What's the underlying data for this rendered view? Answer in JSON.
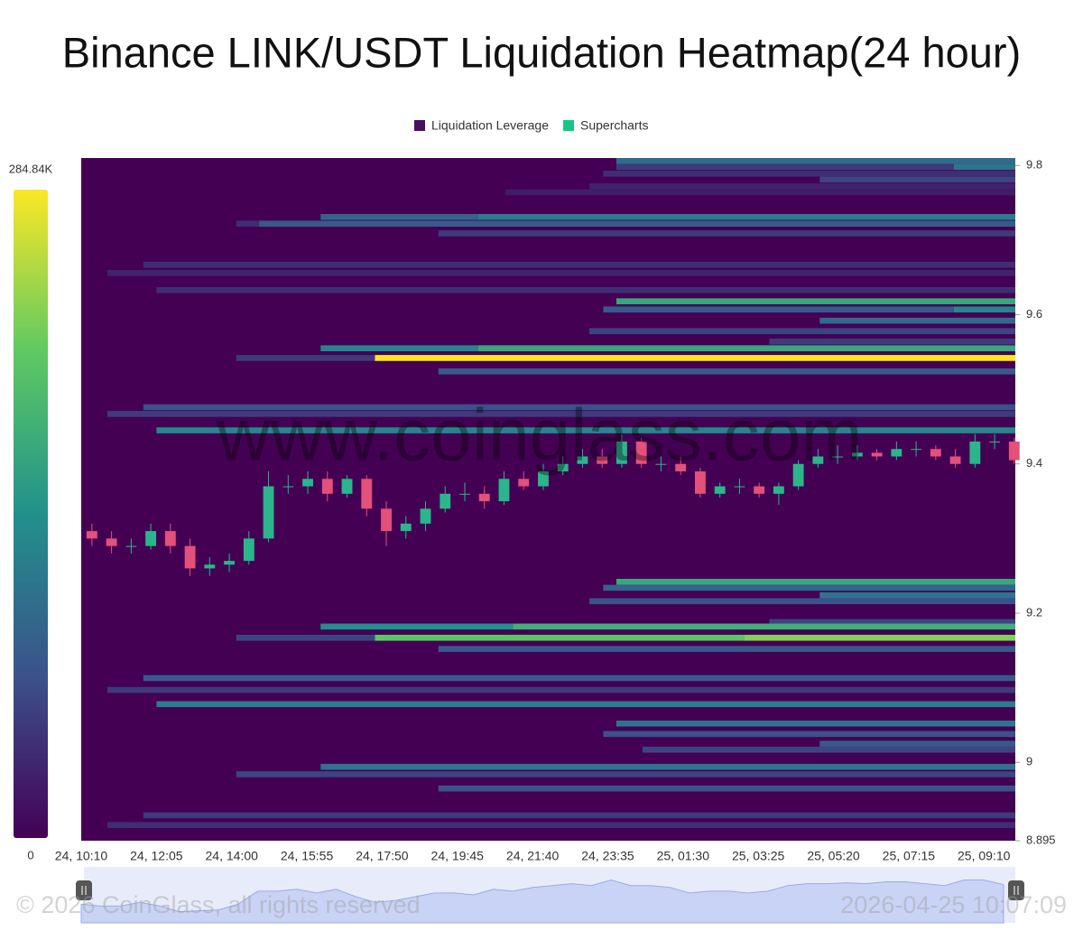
{
  "chart_data": {
    "type": "heatmap",
    "title": "Binance LINK/USDT Liquidation Heatmap(24 hour)",
    "legend": [
      {
        "name": "Liquidation Leverage",
        "color": "#4a0f5f"
      },
      {
        "name": "Supercharts",
        "color": "#16c784"
      }
    ],
    "watermark": "www.coinglass.com",
    "footer_left": "© 2026 CoinGlass, all rights reserved",
    "footer_right": "2026-04-25 10:07:09",
    "colorscale": [
      "#440154",
      "#3b528b",
      "#21918c",
      "#5ec962",
      "#fde725"
    ],
    "clim": [
      0,
      284840
    ],
    "colorbar_ticks": [
      0,
      {
        "value": 284840,
        "label": "284.84K"
      }
    ],
    "ylim": [
      8.895,
      9.81
    ],
    "yticks": [
      8.895,
      9,
      9.2,
      9.4,
      9.6,
      9.8
    ],
    "xlim": [
      "24, 10:10",
      "25, 09:58"
    ],
    "xticks": [
      "24, 10:10",
      "24, 12:05",
      "24, 14:00",
      "24, 15:55",
      "24, 17:50",
      "24, 19:45",
      "24, 21:40",
      "24, 23:35",
      "25, 01:30",
      "25, 03:25",
      "25, 05:20",
      "25, 07:15",
      "25, 09:10"
    ],
    "bin_size": 0.008,
    "levels": [
      {
        "price": 9.806,
        "steps": [
          [
            "24, 23:48",
            100000
          ]
        ]
      },
      {
        "price": 9.798,
        "steps": [
          [
            "24, 23:48",
            50000
          ],
          [
            "25, 08:24",
            110000
          ]
        ]
      },
      {
        "price": 9.789,
        "steps": [
          [
            "24, 23:28",
            40000
          ]
        ]
      },
      {
        "price": 9.781,
        "steps": [
          [
            "25, 04:59",
            60000
          ]
        ]
      },
      {
        "price": 9.772,
        "steps": [
          [
            "24, 23:07",
            30000
          ]
        ]
      },
      {
        "price": 9.764,
        "steps": [
          [
            "24, 20:59",
            25000
          ]
        ]
      },
      {
        "price": 9.731,
        "steps": [
          [
            "24, 16:16",
            90000
          ],
          [
            "24, 20:17",
            120000
          ]
        ]
      },
      {
        "price": 9.722,
        "steps": [
          [
            "24, 14:07",
            40000
          ],
          [
            "24, 14:42",
            80000
          ]
        ]
      },
      {
        "price": 9.709,
        "steps": [
          [
            "24, 19:16",
            50000
          ]
        ]
      },
      {
        "price": 9.667,
        "steps": [
          [
            "24, 11:45",
            40000
          ]
        ]
      },
      {
        "price": 9.656,
        "steps": [
          [
            "24, 10:50",
            30000
          ]
        ]
      },
      {
        "price": 9.633,
        "steps": [
          [
            "24, 12:05",
            40000
          ]
        ]
      },
      {
        "price": 9.618,
        "steps": [
          [
            "24, 23:48",
            170000
          ]
        ]
      },
      {
        "price": 9.607,
        "steps": [
          [
            "24, 23:28",
            80000
          ],
          [
            "25, 08:24",
            130000
          ]
        ]
      },
      {
        "price": 9.592,
        "steps": [
          [
            "25, 04:59",
            100000
          ]
        ]
      },
      {
        "price": 9.578,
        "steps": [
          [
            "24, 23:07",
            60000
          ]
        ]
      },
      {
        "price": 9.564,
        "steps": [
          [
            "25, 03:42",
            50000
          ]
        ]
      },
      {
        "price": 9.555,
        "steps": [
          [
            "24, 16:16",
            130000
          ],
          [
            "24, 20:17",
            170000
          ]
        ]
      },
      {
        "price": 9.542,
        "steps": [
          [
            "24, 14:07",
            50000
          ],
          [
            "24, 17:39",
            284840
          ]
        ]
      },
      {
        "price": 9.524,
        "steps": [
          [
            "24, 19:16",
            80000
          ]
        ]
      },
      {
        "price": 9.476,
        "steps": [
          [
            "24, 11:45",
            70000
          ]
        ]
      },
      {
        "price": 9.467,
        "steps": [
          [
            "24, 10:50",
            50000
          ]
        ]
      },
      {
        "price": 9.445,
        "steps": [
          [
            "24, 12:05",
            130000
          ]
        ]
      },
      {
        "price": 9.242,
        "steps": [
          [
            "24, 23:48",
            170000
          ]
        ]
      },
      {
        "price": 9.234,
        "steps": [
          [
            "24, 23:28",
            90000
          ]
        ]
      },
      {
        "price": 9.224,
        "steps": [
          [
            "25, 04:59",
            110000
          ]
        ]
      },
      {
        "price": 9.216,
        "steps": [
          [
            "24, 23:07",
            70000
          ]
        ]
      },
      {
        "price": 9.188,
        "steps": [
          [
            "25, 03:42",
            60000
          ]
        ]
      },
      {
        "price": 9.182,
        "steps": [
          [
            "24, 16:16",
            140000
          ],
          [
            "24, 21:10",
            180000
          ]
        ]
      },
      {
        "price": 9.167,
        "steps": [
          [
            "24, 14:07",
            60000
          ],
          [
            "24, 17:39",
            210000
          ],
          [
            "25, 03:04",
            230000
          ]
        ]
      },
      {
        "price": 9.152,
        "steps": [
          [
            "24, 19:16",
            80000
          ]
        ]
      },
      {
        "price": 9.113,
        "steps": [
          [
            "24, 11:45",
            80000
          ]
        ]
      },
      {
        "price": 9.097,
        "steps": [
          [
            "24, 10:50",
            50000
          ]
        ]
      },
      {
        "price": 9.078,
        "steps": [
          [
            "24, 12:05",
            120000
          ]
        ]
      },
      {
        "price": 9.052,
        "steps": [
          [
            "24, 23:48",
            110000
          ]
        ]
      },
      {
        "price": 9.038,
        "steps": [
          [
            "24, 23:28",
            70000
          ]
        ]
      },
      {
        "price": 9.025,
        "steps": [
          [
            "25, 04:59",
            80000
          ]
        ]
      },
      {
        "price": 9.017,
        "steps": [
          [
            "25, 00:28",
            60000
          ]
        ]
      },
      {
        "price": 8.994,
        "steps": [
          [
            "24, 16:16",
            110000
          ]
        ]
      },
      {
        "price": 8.984,
        "steps": [
          [
            "24, 14:07",
            60000
          ]
        ]
      },
      {
        "price": 8.965,
        "steps": [
          [
            "24, 19:16",
            70000
          ]
        ]
      },
      {
        "price": 8.929,
        "steps": [
          [
            "24, 11:45",
            50000
          ]
        ]
      },
      {
        "price": 8.916,
        "steps": [
          [
            "24, 10:50",
            40000
          ]
        ]
      }
    ],
    "candles": {
      "up_color": "#2bb58c",
      "down_color": "#e3507a",
      "x": [
        "24, 10:10",
        "24, 10:40",
        "24, 11:10",
        "24, 11:40",
        "24, 12:10",
        "24, 12:40",
        "24, 13:10",
        "24, 13:40",
        "24, 14:10",
        "24, 14:40",
        "24, 15:10",
        "24, 15:40",
        "24, 16:10",
        "24, 16:40",
        "24, 17:10",
        "24, 17:40",
        "24, 18:10",
        "24, 18:40",
        "24, 19:10",
        "24, 19:40",
        "24, 20:10",
        "24, 20:40",
        "24, 21:10",
        "24, 21:40",
        "24, 22:10",
        "24, 22:40",
        "24, 23:10",
        "24, 23:40",
        "25, 00:10",
        "25, 00:40",
        "25, 01:10",
        "25, 01:40",
        "25, 02:10",
        "25, 02:40",
        "25, 03:10",
        "25, 03:40",
        "25, 04:10",
        "25, 04:40",
        "25, 05:10",
        "25, 05:40",
        "25, 06:10",
        "25, 06:40",
        "25, 07:10",
        "25, 07:40",
        "25, 08:10",
        "25, 08:40",
        "25, 09:10",
        "25, 09:40"
      ],
      "open": [
        9.31,
        9.3,
        9.29,
        9.29,
        9.31,
        9.29,
        9.26,
        9.265,
        9.27,
        9.3,
        9.37,
        9.37,
        9.38,
        9.36,
        9.38,
        9.34,
        9.31,
        9.32,
        9.34,
        9.36,
        9.36,
        9.35,
        9.38,
        9.37,
        9.39,
        9.4,
        9.41,
        9.4,
        9.43,
        9.4,
        9.4,
        9.39,
        9.36,
        9.37,
        9.37,
        9.36,
        9.37,
        9.4,
        9.41,
        9.41,
        9.415,
        9.41,
        9.42,
        9.42,
        9.41,
        9.4,
        9.43,
        9.43
      ],
      "high": [
        9.32,
        9.31,
        9.3,
        9.32,
        9.32,
        9.3,
        9.275,
        9.28,
        9.31,
        9.39,
        9.385,
        9.39,
        9.39,
        9.385,
        9.385,
        9.35,
        9.33,
        9.35,
        9.37,
        9.375,
        9.37,
        9.39,
        9.39,
        9.4,
        9.41,
        9.42,
        9.42,
        9.44,
        9.435,
        9.41,
        9.41,
        9.395,
        9.375,
        9.38,
        9.375,
        9.375,
        9.405,
        9.42,
        9.425,
        9.425,
        9.42,
        9.43,
        9.43,
        9.425,
        9.42,
        9.44,
        9.44,
        9.435
      ],
      "low": [
        9.29,
        9.28,
        9.28,
        9.285,
        9.28,
        9.25,
        9.25,
        9.255,
        9.265,
        9.295,
        9.36,
        9.36,
        9.35,
        9.355,
        9.33,
        9.29,
        9.3,
        9.31,
        9.335,
        9.35,
        9.34,
        9.345,
        9.365,
        9.365,
        9.385,
        9.395,
        9.395,
        9.395,
        9.395,
        9.39,
        9.385,
        9.355,
        9.355,
        9.36,
        9.355,
        9.345,
        9.365,
        9.395,
        9.4,
        9.405,
        9.405,
        9.405,
        9.41,
        9.405,
        9.395,
        9.395,
        9.42,
        9.4
      ],
      "close": [
        9.3,
        9.29,
        9.29,
        9.31,
        9.29,
        9.26,
        9.265,
        9.27,
        9.3,
        9.37,
        9.37,
        9.38,
        9.36,
        9.38,
        9.34,
        9.31,
        9.32,
        9.34,
        9.36,
        9.36,
        9.35,
        9.38,
        9.37,
        9.39,
        9.4,
        9.41,
        9.4,
        9.43,
        9.4,
        9.4,
        9.39,
        9.36,
        9.37,
        9.37,
        9.36,
        9.37,
        9.4,
        9.41,
        9.41,
        9.415,
        9.41,
        9.42,
        9.42,
        9.41,
        9.4,
        9.43,
        9.43,
        9.405
      ]
    }
  }
}
